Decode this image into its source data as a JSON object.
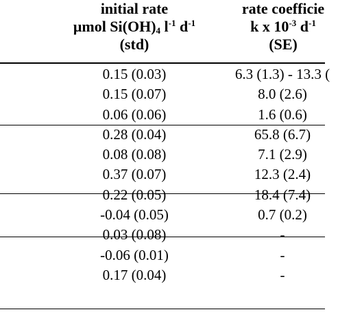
{
  "header": {
    "rate": {
      "line1": "initial rate",
      "line2_prefix": "μmol Si(OH)",
      "line2_sub": "4",
      "line2_unit1": " l",
      "line2_sup1": "-1",
      "line2_unit2": " d",
      "line2_sup2": "-1",
      "line3": "(std)"
    },
    "coef": {
      "line1": "rate coefficie",
      "line2_prefix": "k x 10",
      "line2_sup1": "-3",
      "line2_unit": " d",
      "line2_sup2": "-1",
      "line3": "(SE)"
    }
  },
  "rows": [
    {
      "rate": "0.15 (0.03)",
      "coef": "6.3 (1.3) - 13.3 ("
    },
    {
      "rate": "0.15 (0.07)",
      "coef": "8.0 (2.6)"
    },
    {
      "rate": "0.06 (0.06)",
      "coef": "1.6 (0.6)"
    },
    {
      "rate": "0.28 (0.04)",
      "coef": "65.8 (6.7)"
    },
    {
      "rate": "0.08 (0.08)",
      "coef": "7.1 (2.9)"
    },
    {
      "rate": "0.37 (0.07)",
      "coef": "12.3 (2.4)"
    },
    {
      "rate": "0.22 (0.05)",
      "coef": "18.4 (7.4)"
    },
    {
      "rate": "-0.04 (0.05)",
      "coef": "0.7 (0.2)"
    },
    {
      "rate": "0.03 (0.08)",
      "coef": "-"
    },
    {
      "rate": "-0.06 (0.01)",
      "coef": "-"
    },
    {
      "rate": "0.17 (0.04)",
      "coef": "-"
    }
  ]
}
